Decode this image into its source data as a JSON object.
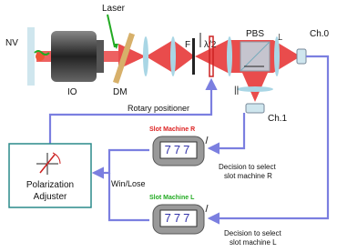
{
  "labels": {
    "nv": "NV",
    "laser": "Laser",
    "io": "IO",
    "dm": "DM",
    "f": "F",
    "half_wave": "λ/2",
    "pbs": "PBS",
    "perp": "⊥",
    "ch0": "Ch.0",
    "parallel": "||",
    "ch1": "Ch.1",
    "rotary": "Rotary positioner",
    "slot_r": "Slot Machine R",
    "slot_l": "Slot Machine L",
    "slot_r_reels": "777",
    "slot_l_reels": "777",
    "win_lose": "Win/Lose",
    "adjuster": [
      "Polarization",
      "Adjuster"
    ],
    "decision_r": [
      "Decision to select",
      "slot machine R"
    ],
    "decision_l": [
      "Decision to select",
      "slot machine L"
    ]
  }
}
